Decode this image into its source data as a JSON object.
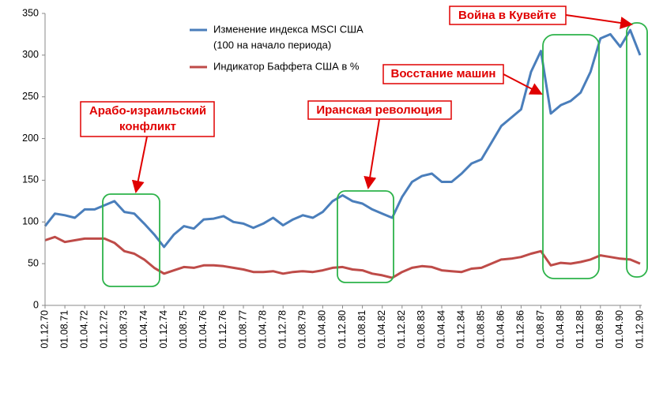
{
  "chart_data": {
    "type": "line",
    "categories": [
      "01.12.70",
      null,
      "01.08.71",
      null,
      "01.04.72",
      null,
      "01.12.72",
      null,
      "01.08.73",
      null,
      "01.04.74",
      null,
      "01.12.74",
      null,
      "01.08.75",
      null,
      "01.04.76",
      null,
      "01.12.76",
      null,
      "01.08.77",
      null,
      "01.04.78",
      null,
      "01.12.78",
      null,
      "01.08.79",
      null,
      "01.04.80",
      null,
      "01.12.80",
      null,
      "01.08.81",
      null,
      "01.04.82",
      null,
      "01.12.82",
      null,
      "01.08.83",
      null,
      "01.04.84",
      null,
      "01.12.84",
      null,
      "01.08.85",
      null,
      "01.04.86",
      null,
      "01.12.86",
      null,
      "01.08.87",
      null,
      "01.04.88",
      null,
      "01.12.88",
      null,
      "01.08.89",
      null,
      "01.04.90",
      null,
      "01.12.90"
    ],
    "series": [
      {
        "name": "Изменение индекса MSCI США",
        "note": "(100 на начало периода)",
        "color": "#4a7ebb",
        "values": [
          95,
          110,
          108,
          105,
          115,
          115,
          120,
          125,
          112,
          110,
          98,
          85,
          70,
          85,
          95,
          92,
          103,
          104,
          107,
          100,
          98,
          93,
          98,
          105,
          96,
          103,
          108,
          105,
          112,
          125,
          132,
          125,
          122,
          115,
          110,
          105,
          130,
          148,
          155,
          158,
          148,
          148,
          158,
          170,
          175,
          195,
          215,
          225,
          235,
          280,
          305,
          230,
          240,
          245,
          255,
          280,
          320,
          325,
          310,
          330,
          300
        ]
      },
      {
        "name": "Индикатор Баффета США в %",
        "color": "#be4b48",
        "values": [
          78,
          82,
          76,
          78,
          80,
          80,
          80,
          75,
          65,
          62,
          55,
          45,
          38,
          42,
          46,
          45,
          48,
          48,
          47,
          45,
          43,
          40,
          40,
          41,
          38,
          40,
          41,
          40,
          42,
          45,
          46,
          43,
          42,
          38,
          36,
          33,
          40,
          45,
          47,
          46,
          42,
          41,
          40,
          44,
          45,
          50,
          55,
          56,
          58,
          62,
          65,
          48,
          51,
          50,
          52,
          55,
          60,
          58,
          56,
          55,
          50
        ]
      }
    ],
    "ylim": [
      0,
      350
    ],
    "yticks": [
      0,
      50,
      100,
      150,
      200,
      250,
      300,
      350
    ],
    "annotations": [
      {
        "lines": [
          "Арабо-израильский",
          "конфликт"
        ]
      },
      {
        "lines": [
          "Иранская революция"
        ]
      },
      {
        "lines": [
          "Восстание машин"
        ]
      },
      {
        "lines": [
          "Война в Кувейте"
        ]
      }
    ]
  }
}
